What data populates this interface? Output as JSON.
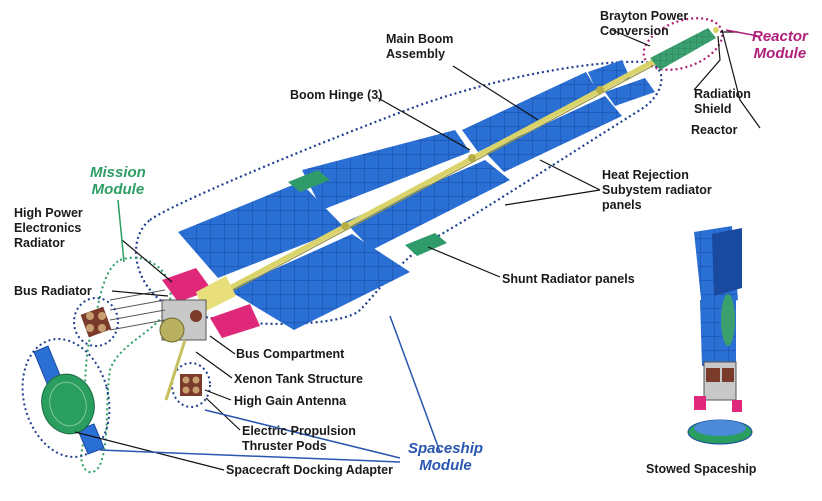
{
  "labels": {
    "brayton": [
      "Brayton Power",
      "Conversion"
    ],
    "main_boom": [
      "Main Boom",
      "Assembly"
    ],
    "boom_hinge": "Boom Hinge (3)",
    "radiation_shield": [
      "Radiation",
      "Shield"
    ],
    "reactor": "Reactor",
    "heat_rejection": [
      "Heat Rejection",
      "Subystem radiator",
      "panels"
    ],
    "high_power": [
      "High Power",
      "Electronics",
      "Radiator"
    ],
    "bus_radiator": "Bus Radiator",
    "shunt": "Shunt Radiator panels",
    "bus_compartment": "Bus Compartment",
    "xenon": "Xenon Tank Structure",
    "high_gain": "High Gain Antenna",
    "ep_thruster": [
      "Electric Propulsion",
      "Thruster Pods"
    ],
    "docking": "Spacecraft Docking Adapter",
    "stowed": "Stowed Spaceship"
  },
  "modules": {
    "reactor": [
      "Reactor",
      "Module"
    ],
    "mission": [
      "Mission",
      "Module"
    ],
    "spaceship": [
      "Spaceship",
      "Module"
    ]
  },
  "colors": {
    "panel_blue": "#2a6fd4",
    "panel_dark": "#1a4aa0",
    "boom_yellow": "#d9d36a",
    "reactor_green": "#3aa070",
    "shunt_green": "#2f9b6a",
    "pink_radiator": "#e0287a",
    "reactor_module_magenta": "#b0207a",
    "mission_module_green": "#2e9e63",
    "spaceship_module_blue": "#2a56b0",
    "dotted_outline_blue": "#1f3f8f"
  }
}
